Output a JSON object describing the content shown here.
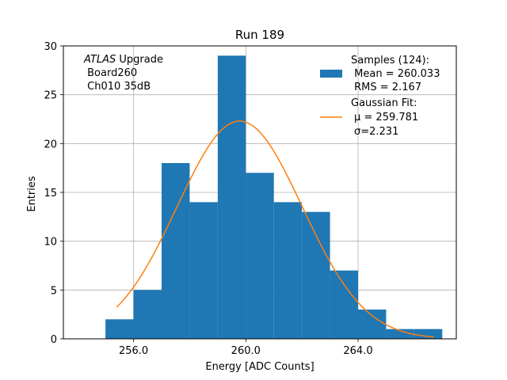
{
  "chart_data": {
    "type": "bar",
    "title": "Run 189",
    "xlabel": "Energy [ADC Counts]",
    "ylabel": "Entries",
    "xlim": [
      253.5,
      267.5
    ],
    "ylim": [
      0,
      30
    ],
    "xticks": [
      256,
      260,
      264
    ],
    "xtick_labels": [
      "256.0",
      "260.0",
      "264.0"
    ],
    "yticks": [
      0,
      5,
      10,
      15,
      20,
      25,
      30
    ],
    "ytick_labels": [
      "0",
      "5",
      "10",
      "15",
      "20",
      "25",
      "30"
    ],
    "grid": true,
    "bins": [
      {
        "x0": 255.0,
        "x1": 256.0,
        "count": 2
      },
      {
        "x0": 256.0,
        "x1": 257.0,
        "count": 5
      },
      {
        "x0": 257.0,
        "x1": 258.0,
        "count": 18
      },
      {
        "x0": 258.0,
        "x1": 259.0,
        "count": 14
      },
      {
        "x0": 259.0,
        "x1": 260.0,
        "count": 29
      },
      {
        "x0": 260.0,
        "x1": 261.0,
        "count": 17
      },
      {
        "x0": 261.0,
        "x1": 262.0,
        "count": 14
      },
      {
        "x0": 262.0,
        "x1": 263.0,
        "count": 13
      },
      {
        "x0": 263.0,
        "x1": 264.0,
        "count": 7
      },
      {
        "x0": 264.0,
        "x1": 265.0,
        "count": 3
      },
      {
        "x0": 265.0,
        "x1": 266.0,
        "count": 1
      },
      {
        "x0": 266.0,
        "x1": 267.0,
        "count": 1
      }
    ],
    "fit": {
      "name": "Gaussian Fit",
      "mu": 259.781,
      "sigma": 2.231,
      "amplitude": 22.3,
      "x_range": [
        255.4,
        266.7
      ]
    },
    "colors": {
      "bars": "#1f77b4",
      "fit": "#ff7f0e",
      "grid": "#b0b0b0"
    },
    "legend": {
      "placement": "top-right",
      "samples_lines": [
        "Samples (124):",
        " Mean = 260.033",
        " RMS = 2.167"
      ],
      "fit_lines": [
        "Gaussian Fit:",
        "μ = 259.781",
        "σ=2.231"
      ]
    },
    "annotation": {
      "placement": "top-left",
      "italic": "ATLAS",
      "rest": " Upgrade",
      "lines": [
        " Board260",
        " Ch010 35dB"
      ]
    }
  }
}
